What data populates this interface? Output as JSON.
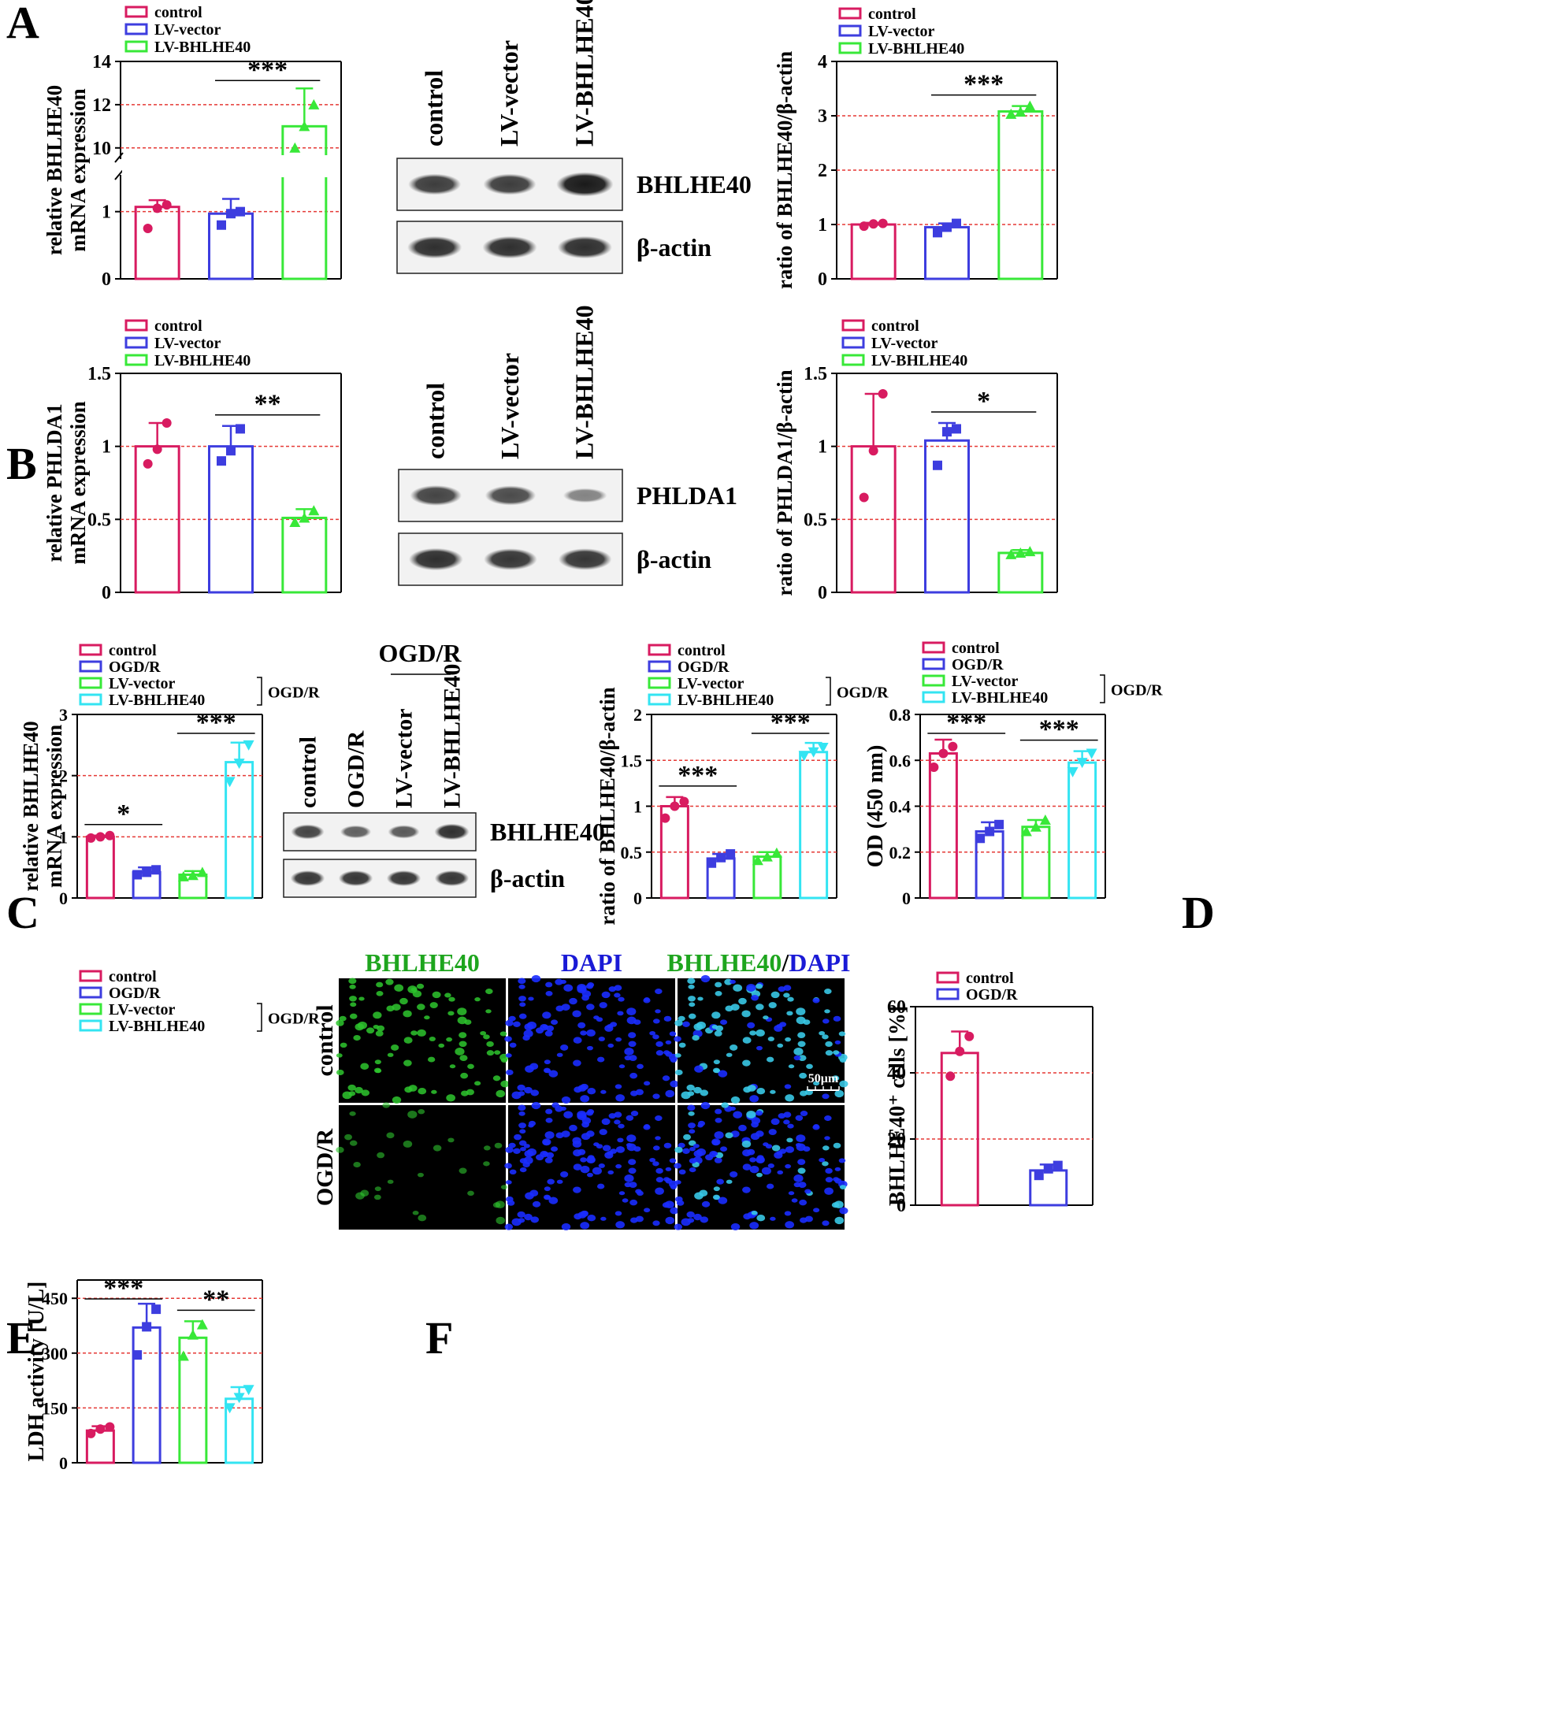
{
  "panel_letters": [
    "A",
    "B",
    "C",
    "D",
    "E",
    "F"
  ],
  "colors": {
    "control": "#d81b60",
    "vector": "#3d3ddf",
    "bhlhe40": "#38e838",
    "lvbhlhe40": "#33e4f2",
    "ogdr_f": "#3d3ddf"
  },
  "blots": {
    "A": {
      "lanes": [
        "control",
        "LV-vector",
        "LV-BHLHE40"
      ],
      "bands": [
        "BHLHE40",
        "β-actin"
      ],
      "intensity": [
        [
          0.75,
          0.75,
          1.0
        ],
        [
          0.85,
          0.85,
          0.85
        ]
      ]
    },
    "B": {
      "lanes": [
        "control",
        "LV-vector",
        "LV-BHLHE40"
      ],
      "bands": [
        "PHLDA1",
        "β-actin"
      ],
      "intensity": [
        [
          0.7,
          0.65,
          0.25
        ],
        [
          0.85,
          0.8,
          0.8
        ]
      ]
    },
    "C": {
      "header": "OGD/R",
      "lanes": [
        "control",
        "OGD/R",
        "LV-vector",
        "LV-BHLHE40"
      ],
      "bands": [
        "BHLHE40",
        "β-actin"
      ],
      "intensity": [
        [
          0.7,
          0.5,
          0.55,
          0.85
        ],
        [
          0.8,
          0.8,
          0.8,
          0.8
        ]
      ]
    }
  },
  "micrograph": {
    "columns": [
      "BHLHE40",
      "DAPI",
      "BHLHE40/DAPI"
    ],
    "title_parts": [
      "BHLHE40",
      "/",
      "DAPI"
    ],
    "rows": [
      "control",
      "OGD/R"
    ],
    "scale_bar": "50μm"
  },
  "chart_data": [
    {
      "id": "A1",
      "panel": "A",
      "type": "bar",
      "legend": [
        "control",
        "LV-vector",
        "LV-BHLHE40"
      ],
      "ylabel": [
        "relative BHLHE40",
        "mRNA expression"
      ],
      "categories": [
        "control",
        "LV-vector",
        "LV-BHLHE40"
      ],
      "values": [
        1.07,
        0.97,
        11.0
      ],
      "errors": [
        0.1,
        0.22,
        1.75
      ],
      "points": [
        [
          0.75,
          1.05,
          1.1
        ],
        [
          0.8,
          0.97,
          1.0
        ],
        [
          10.0,
          11.0,
          12.0
        ]
      ],
      "axis": "broken",
      "segments": [
        {
          "range": [
            0,
            1.5
          ],
          "ticks": [
            0,
            1
          ]
        },
        {
          "range": [
            9.7,
            14
          ],
          "ticks": [
            10,
            12,
            14
          ]
        }
      ],
      "grid": [
        1,
        10,
        12
      ],
      "significance": [
        {
          "from": 1,
          "to": 2,
          "text": "***"
        }
      ]
    },
    {
      "id": "A2",
      "panel": "A",
      "type": "bar",
      "legend": [
        "control",
        "LV-vector",
        "LV-BHLHE40"
      ],
      "ylabel": [
        "ratio of BHLHE40/β-actin"
      ],
      "categories": [
        "control",
        "LV-vector",
        "LV-BHLHE40"
      ],
      "values": [
        1.0,
        0.95,
        3.08
      ],
      "errors": [
        0.03,
        0.07,
        0.1
      ],
      "points": [
        [
          0.97,
          1.01,
          1.02
        ],
        [
          0.85,
          0.95,
          1.02
        ],
        [
          3.03,
          3.07,
          3.18
        ]
      ],
      "ylim": [
        0,
        4
      ],
      "ticks": [
        0,
        1,
        2,
        3,
        4
      ],
      "grid": [
        1,
        2,
        3
      ],
      "significance": [
        {
          "from": 1,
          "to": 2,
          "text": "***"
        }
      ]
    },
    {
      "id": "B1",
      "panel": "B",
      "type": "bar",
      "legend": [
        "control",
        "LV-vector",
        "LV-BHLHE40"
      ],
      "ylabel": [
        "relative PHLDA1",
        "mRNA expression"
      ],
      "categories": [
        "control",
        "LV-vector",
        "LV-BHLHE40"
      ],
      "values": [
        1.0,
        1.0,
        0.51
      ],
      "errors": [
        0.16,
        0.14,
        0.06
      ],
      "points": [
        [
          0.88,
          0.98,
          1.16
        ],
        [
          0.9,
          0.97,
          1.12
        ],
        [
          0.48,
          0.51,
          0.56
        ]
      ],
      "ylim": [
        0,
        1.5
      ],
      "ticks": [
        0.0,
        0.5,
        1.0,
        1.5
      ],
      "grid": [
        0.5,
        1.0
      ],
      "significance": [
        {
          "from": 1,
          "to": 2,
          "text": "**"
        }
      ]
    },
    {
      "id": "B2",
      "panel": "B",
      "type": "bar",
      "legend": [
        "control",
        "LV-vector",
        "LV-BHLHE40"
      ],
      "ylabel": [
        "ratio of PHLDA1/β-actin"
      ],
      "categories": [
        "control",
        "LV-vector",
        "LV-BHLHE40"
      ],
      "values": [
        1.0,
        1.04,
        0.27
      ],
      "errors": [
        0.36,
        0.12,
        0.02
      ],
      "points": [
        [
          0.65,
          0.97,
          1.36
        ],
        [
          0.87,
          1.1,
          1.12
        ],
        [
          0.26,
          0.27,
          0.28
        ]
      ],
      "ylim": [
        0,
        1.5
      ],
      "ticks": [
        0.0,
        0.5,
        1.0,
        1.5
      ],
      "grid": [
        0.5,
        1.0
      ],
      "significance": [
        {
          "from": 1,
          "to": 2,
          "text": "*"
        }
      ]
    },
    {
      "id": "C1",
      "panel": "C",
      "type": "bar",
      "legend": [
        "control",
        "OGD/R",
        "LV-vector",
        "LV-BHLHE40"
      ],
      "legend_bracket": "OGD/R",
      "ylabel": [
        "relative BHLHE40",
        "mRNA expression"
      ],
      "categories": [
        "control",
        "OGD/R",
        "LV-vector",
        "LV-BHLHE40"
      ],
      "values": [
        1.0,
        0.42,
        0.38,
        2.22
      ],
      "errors": [
        0.02,
        0.08,
        0.06,
        0.32
      ],
      "points": [
        [
          0.98,
          1.0,
          1.02
        ],
        [
          0.38,
          0.42,
          0.46
        ],
        [
          0.35,
          0.37,
          0.42
        ],
        [
          1.9,
          2.2,
          2.5
        ]
      ],
      "ylim": [
        0,
        3
      ],
      "ticks": [
        0,
        1,
        2,
        3
      ],
      "grid": [
        1,
        2
      ],
      "significance": [
        {
          "from": 0,
          "to": 1,
          "text": "*"
        },
        {
          "from": 2,
          "to": 3,
          "text": "***"
        }
      ]
    },
    {
      "id": "C2",
      "panel": "C",
      "type": "bar",
      "legend": [
        "control",
        "OGD/R",
        "LV-vector",
        "LV-BHLHE40"
      ],
      "legend_bracket": "OGD/R",
      "ylabel": [
        "ratio of BHLHE40/β-actin"
      ],
      "categories": [
        "control",
        "OGD/R",
        "LV-vector",
        "LV-BHLHE40"
      ],
      "values": [
        1.0,
        0.43,
        0.45,
        1.59
      ],
      "errors": [
        0.1,
        0.05,
        0.05,
        0.1
      ],
      "points": [
        [
          0.87,
          1.0,
          1.05
        ],
        [
          0.38,
          0.44,
          0.48
        ],
        [
          0.41,
          0.45,
          0.49
        ],
        [
          1.55,
          1.59,
          1.64
        ]
      ],
      "ylim": [
        0,
        2
      ],
      "ticks": [
        0.0,
        0.5,
        1.0,
        1.5,
        2.0
      ],
      "grid": [
        0.5,
        1.0,
        1.5
      ],
      "significance": [
        {
          "from": 0,
          "to": 1,
          "text": "***"
        },
        {
          "from": 2,
          "to": 3,
          "text": "***"
        }
      ]
    },
    {
      "id": "D1",
      "panel": "D",
      "type": "bar",
      "legend": [
        "control",
        "OGD/R",
        "LV-vector",
        "LV-BHLHE40"
      ],
      "legend_bracket": "OGD/R",
      "ylabel": [
        "OD (450 nm)"
      ],
      "categories": [
        "control",
        "OGD/R",
        "LV-vector",
        "LV-BHLHE40"
      ],
      "values": [
        0.63,
        0.29,
        0.31,
        0.59
      ],
      "errors": [
        0.06,
        0.04,
        0.03,
        0.05
      ],
      "points": [
        [
          0.57,
          0.63,
          0.66
        ],
        [
          0.26,
          0.29,
          0.32
        ],
        [
          0.29,
          0.31,
          0.34
        ],
        [
          0.55,
          0.59,
          0.63
        ]
      ],
      "ylim": [
        0,
        0.8
      ],
      "ticks": [
        0.0,
        0.2,
        0.4,
        0.6,
        0.8
      ],
      "grid": [
        0.2,
        0.4,
        0.6
      ],
      "significance": [
        {
          "from": 0,
          "to": 1,
          "text": "***"
        },
        {
          "from": 2,
          "to": 3,
          "text": "***"
        }
      ]
    },
    {
      "id": "E1",
      "panel": "E",
      "type": "bar",
      "legend": [
        "control",
        "OGD/R",
        "LV-vector",
        "LV-BHLHE40"
      ],
      "legend_bracket": "OGD/R",
      "ylabel": [
        "LDH activity [U/L]"
      ],
      "categories": [
        "control",
        "OGD/R",
        "LV-vector",
        "LV-BHLHE40"
      ],
      "values": [
        88,
        370,
        342,
        175
      ],
      "errors": [
        12,
        65,
        45,
        32
      ],
      "points": [
        [
          80,
          92,
          98
        ],
        [
          295,
          372,
          420
        ],
        [
          292,
          350,
          378
        ],
        [
          150,
          178,
          200
        ]
      ],
      "ylim": [
        0,
        500
      ],
      "ticks": [
        0,
        150,
        300,
        450
      ],
      "grid": [
        150,
        300,
        450
      ],
      "significance": [
        {
          "from": 0,
          "to": 1,
          "text": "***"
        },
        {
          "from": 2,
          "to": 3,
          "text": "**"
        }
      ]
    },
    {
      "id": "F1",
      "panel": "F",
      "type": "bar",
      "legend": [
        "control",
        "OGD/R"
      ],
      "ylabel": [
        "BHLHE40⁺ cells [%]"
      ],
      "categories": [
        "control",
        "OGD/R"
      ],
      "values": [
        46,
        10.5
      ],
      "errors": [
        6.5,
        1.8
      ],
      "points": [
        [
          39,
          46.5,
          51
        ],
        [
          9,
          11,
          12
        ]
      ],
      "ylim": [
        0,
        60
      ],
      "ticks": [
        0,
        20,
        40,
        60
      ],
      "grid": [
        20,
        40
      ],
      "significance": []
    }
  ]
}
